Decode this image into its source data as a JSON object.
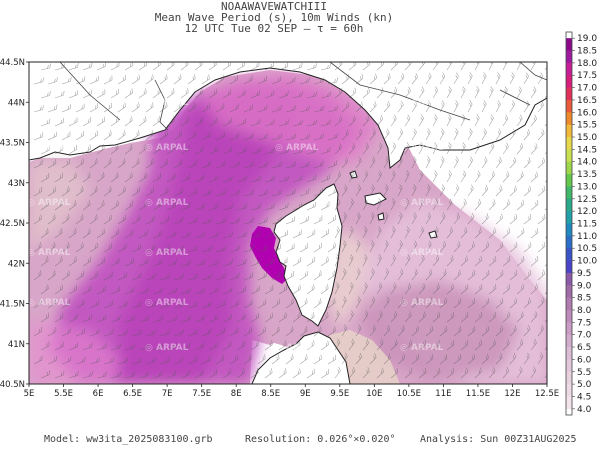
{
  "header": {
    "line1": "NOAAWAVEWATCHIII",
    "line2": "Mean Wave Period (s), 10m Winds (kn)",
    "line3": "12 UTC Tue 02 SEP  —  τ = 60h"
  },
  "map": {
    "lon_labels": [
      "5E",
      "5.5E",
      "6E",
      "6.5E",
      "7E",
      "7.5E",
      "8E",
      "8.5E",
      "9E",
      "9.5E",
      "10E",
      "10.5E",
      "11E",
      "11.5E",
      "12E",
      "12.5E"
    ],
    "lat_labels": [
      "44.5N",
      "44N",
      "43.5N",
      "43N",
      "42.5N",
      "42N",
      "41.5N",
      "41N",
      "40.5N"
    ],
    "watermark": "ARPAL",
    "colors": {
      "land": "#ffffff",
      "coast": "#222222",
      "wind_barb": "#555555"
    }
  },
  "colorbar": {
    "labels": [
      "19.0",
      "18.5",
      "18.0",
      "17.5",
      "17.0",
      "16.5",
      "16.0",
      "15.5",
      "15.0",
      "14.5",
      "14.0",
      "13.5",
      "13.0",
      "12.5",
      "12.0",
      "11.5",
      "11.0",
      "10.5",
      "10.0",
      "9.5",
      "9.0",
      "8.5",
      "8.0",
      "7.5",
      "7.0",
      "6.5",
      "6.0",
      "5.5",
      "5.0",
      "4.5",
      "4.0"
    ],
    "colors": [
      "#8a0a8a",
      "#9e1a9e",
      "#c51e96",
      "#d71e7a",
      "#e0305a",
      "#e85a3a",
      "#ee8a2a",
      "#f2b83a",
      "#e6d84a",
      "#c8e050",
      "#9ed84a",
      "#64c84a",
      "#40b86a",
      "#2aa88a",
      "#22a0a8",
      "#2288c0",
      "#2a6ec8",
      "#3a54c8",
      "#4a44c8",
      "#8a5aa8",
      "#a06ca8",
      "#b07cb0",
      "#be8cba",
      "#c89cc4",
      "#d2accc",
      "#dabcd4",
      "#e2c8da",
      "#e8d2de",
      "#eedae4",
      "#f2e4ea"
    ]
  },
  "footer": {
    "model": "Model: ww3ita_2025083100.grb",
    "resolution": "Resolution: 0.026°×0.020°",
    "analysis": "Analysis: Sun 00Z31AUG2025"
  }
}
